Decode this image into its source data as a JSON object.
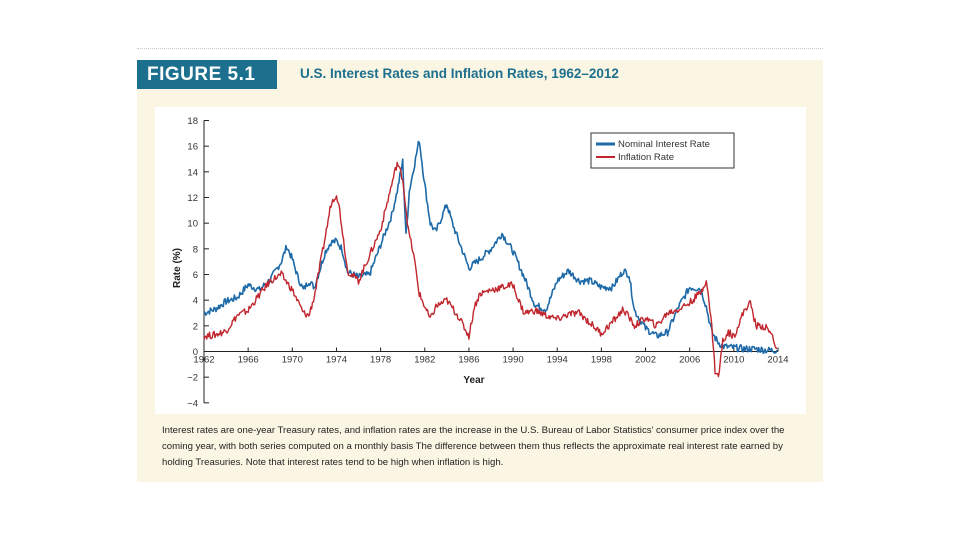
{
  "figure": {
    "label": "FIGURE 5.1",
    "title": "U.S. Interest Rates and Inflation Rates, 1962–2012",
    "caption": "Interest rates are one-year Treasury rates, and inflation rates are the increase in the U.S. Bureau of Labor Statistics’ consumer price index over the coming year, with both series computed on a monthly basis The difference between them thus reflects the approximate real interest rate earned by holding Treasuries. Note that interest rates tend to be high when inflation is high."
  },
  "colors": {
    "nominal": "#1e6aa8",
    "inflation": "#c0262d",
    "panel": "#fbf6e3",
    "label_bg": "#1d6f8e"
  },
  "chart_data": {
    "type": "line",
    "title": "U.S. Interest Rates and Inflation Rates, 1962–2012",
    "xlabel": "Year",
    "ylabel": "Rate (%)",
    "xlim": [
      1962,
      2014
    ],
    "ylim": [
      -4,
      18
    ],
    "xticks": [
      1962,
      1966,
      1970,
      1974,
      1978,
      1982,
      1986,
      1990,
      1994,
      1998,
      2002,
      2006,
      2010,
      2014
    ],
    "yticks": [
      -4,
      -2,
      0,
      2,
      4,
      6,
      8,
      10,
      12,
      14,
      16,
      18
    ],
    "legend_position": "top-right",
    "series": [
      {
        "name": "Nominal Interest Rate",
        "color": "#1e6aa8",
        "x": [
          1962,
          1963,
          1964,
          1965,
          1966,
          1967,
          1968,
          1969,
          1969.5,
          1970,
          1970.5,
          1971,
          1971.5,
          1972,
          1973,
          1973.5,
          1974,
          1974.5,
          1975,
          1976,
          1977,
          1978,
          1979,
          1979.5,
          1980,
          1980.3,
          1980.6,
          1981,
          1981.5,
          1982,
          1982.5,
          1983,
          1984,
          1984.5,
          1985,
          1986,
          1987,
          1988,
          1989,
          1990,
          1991,
          1992,
          1993,
          1994,
          1995,
          1996,
          1997,
          1998,
          1999,
          2000,
          2000.5,
          2001,
          2002,
          2003,
          2004,
          2005,
          2006,
          2007,
          2007.5,
          2008,
          2008.5,
          2009,
          2010,
          2011,
          2012,
          2013,
          2013.9
        ],
        "values": [
          3.0,
          3.3,
          3.9,
          4.2,
          5.2,
          4.8,
          5.6,
          7.0,
          8.2,
          7.2,
          5.8,
          4.8,
          5.5,
          5.0,
          7.8,
          8.5,
          8.6,
          8.0,
          6.2,
          5.8,
          6.0,
          8.3,
          10.6,
          12.5,
          14.8,
          9.0,
          12.5,
          14.3,
          16.5,
          13.0,
          10.0,
          9.3,
          11.5,
          10.0,
          8.8,
          6.5,
          7.2,
          8.0,
          9.2,
          7.8,
          5.8,
          3.6,
          3.3,
          5.5,
          6.3,
          5.5,
          5.5,
          5.0,
          5.0,
          6.3,
          6.0,
          3.2,
          1.8,
          1.2,
          1.5,
          3.5,
          5.0,
          4.9,
          3.5,
          1.5,
          0.8,
          0.4,
          0.3,
          0.2,
          0.2,
          0.1,
          0.1
        ]
      },
      {
        "name": "Inflation Rate",
        "color": "#c0262d",
        "x": [
          1962,
          1963,
          1964,
          1965,
          1966,
          1967,
          1968,
          1969,
          1970,
          1971,
          1971.5,
          1972,
          1973,
          1973.5,
          1974,
          1974.3,
          1975,
          1976,
          1977,
          1978,
          1979,
          1979.5,
          1980,
          1980.5,
          1981,
          1981.5,
          1982,
          1982.5,
          1983,
          1984,
          1985,
          1986,
          1986.5,
          1987,
          1988,
          1989,
          1990,
          1990.5,
          1991,
          1992,
          1993,
          1994,
          1995,
          1996,
          1997,
          1998,
          1999,
          2000,
          2001,
          2002,
          2003,
          2004,
          2005,
          2006,
          2007,
          2007.5,
          2008,
          2008.3,
          2008.6,
          2009,
          2009.5,
          2010,
          2011,
          2011.5,
          2012,
          2012.5,
          2013,
          2013.5,
          2013.9
        ],
        "values": [
          1.2,
          1.3,
          1.6,
          2.8,
          3.2,
          4.4,
          5.5,
          6.0,
          4.8,
          3.0,
          2.8,
          4.3,
          9.0,
          11.5,
          12.3,
          11.0,
          6.3,
          5.5,
          7.5,
          9.5,
          13.0,
          14.7,
          13.5,
          9.5,
          7.5,
          4.5,
          3.5,
          2.5,
          3.5,
          4.0,
          2.8,
          1.2,
          3.5,
          4.5,
          4.8,
          5.0,
          5.2,
          4.0,
          3.0,
          3.2,
          2.8,
          2.5,
          2.9,
          3.0,
          2.2,
          1.4,
          2.3,
          3.3,
          2.0,
          2.6,
          2.0,
          3.0,
          3.3,
          3.8,
          4.6,
          5.6,
          2.0,
          -1.5,
          -2.0,
          0.8,
          1.5,
          1.2,
          3.3,
          3.8,
          2.0,
          2.0,
          1.8,
          1.2,
          0.2
        ]
      }
    ]
  }
}
